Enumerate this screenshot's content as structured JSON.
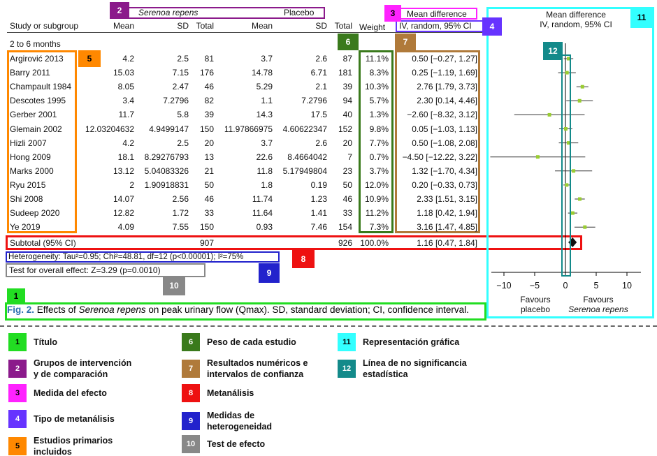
{
  "header": {
    "group_treatment": "Serenoa repens",
    "group_control": "Placebo",
    "effect_measure": "Mean difference",
    "method": "IV, random, 95% CI",
    "plot_title": "Mean difference",
    "plot_method": "IV, random, 95% CI",
    "col_study": "Study or subgroup",
    "col_mean": "Mean",
    "col_sd": "SD",
    "col_total": "Total",
    "col_weight": "Weight",
    "subgroup": "2 to 6 months"
  },
  "studies": [
    {
      "name": "Argirović 2013",
      "m1": "4.2",
      "sd1": "2.5",
      "n1": "81",
      "m2": "3.7",
      "sd2": "2.6",
      "n2": "87",
      "weight": "11.1%",
      "ci": "0.50 [−0.27, 1.27]"
    },
    {
      "name": "Barry 2011",
      "m1": "15.03",
      "sd1": "7.15",
      "n1": "176",
      "m2": "14.78",
      "sd2": "6.71",
      "n2": "181",
      "weight": "8.3%",
      "ci": "0.25 [−1.19, 1.69]"
    },
    {
      "name": "Champault 1984",
      "m1": "8.05",
      "sd1": "2.47",
      "n1": "46",
      "m2": "5.29",
      "sd2": "2.1",
      "n2": "39",
      "weight": "10.3%",
      "ci": "2.76 [1.79, 3.73]"
    },
    {
      "name": "Descotes 1995",
      "m1": "3.4",
      "sd1": "7.2796",
      "n1": "82",
      "m2": "1.1",
      "sd2": "7.2796",
      "n2": "94",
      "weight": "5.7%",
      "ci": "2.30 [0.14, 4.46]"
    },
    {
      "name": "Gerber 2001",
      "m1": "11.7",
      "sd1": "5.8",
      "n1": "39",
      "m2": "14.3",
      "sd2": "17.5",
      "n2": "40",
      "weight": "1.3%",
      "ci": "−2.60 [−8.32, 3.12]"
    },
    {
      "name": "Glemain 2002",
      "m1": "12.03204632",
      "sd1": "4.9499147",
      "n1": "150",
      "m2": "11.97866975",
      "sd2": "4.60622347",
      "n2": "152",
      "weight": "9.8%",
      "ci": "0.05 [−1.03, 1.13]"
    },
    {
      "name": "Hizli 2007",
      "m1": "4.2",
      "sd1": "2.5",
      "n1": "20",
      "m2": "3.7",
      "sd2": "2.6",
      "n2": "20",
      "weight": "7.7%",
      "ci": "0.50 [−1.08, 2.08]"
    },
    {
      "name": "Hong 2009",
      "m1": "18.1",
      "sd1": "8.29276793",
      "n1": "13",
      "m2": "22.6",
      "sd2": "8.4664042",
      "n2": "7",
      "weight": "0.7%",
      "ci": "−4.50 [−12.22, 3.22]"
    },
    {
      "name": "Marks 2000",
      "m1": "13.12",
      "sd1": "5.04083326",
      "n1": "21",
      "m2": "11.8",
      "sd2": "5.17949804",
      "n2": "23",
      "weight": "3.7%",
      "ci": "1.32 [−1.70, 4.34]"
    },
    {
      "name": "Ryu 2015",
      "m1": "2",
      "sd1": "1.90918831",
      "n1": "50",
      "m2": "1.8",
      "sd2": "0.19",
      "n2": "50",
      "weight": "12.0%",
      "ci": "0.20 [−0.33, 0.73]"
    },
    {
      "name": "Shi 2008",
      "m1": "14.07",
      "sd1": "2.56",
      "n1": "46",
      "m2": "11.74",
      "sd2": "1.23",
      "n2": "46",
      "weight": "10.9%",
      "ci": "2.33 [1.51, 3.15]"
    },
    {
      "name": "Sudeep 2020",
      "m1": "12.82",
      "sd1": "1.72",
      "n1": "33",
      "m2": "11.64",
      "sd2": "1.41",
      "n2": "33",
      "weight": "11.2%",
      "ci": "1.18 [0.42, 1.94]"
    },
    {
      "name": "Ye 2019",
      "m1": "4.09",
      "sd1": "7.55",
      "n1": "150",
      "m2": "0.93",
      "sd2": "7.46",
      "n2": "154",
      "weight": "7.3%",
      "ci": "3.16 [1.47, 4.85]"
    }
  ],
  "subtotal": {
    "label": "Subtotal (95% CI)",
    "n1": "907",
    "n2": "926",
    "weight": "100.0%",
    "ci": "1.16 [0.47, 1.84]"
  },
  "heterogeneity": "Heterogeneity: Tau²=0.95; Chi²=48.81, df=12 (p<0.00001); I²=75%",
  "overall_effect": "Test for overall effect: Z=3.29 (p=0.0010)",
  "plot": {
    "axis_ticks": [
      "−10",
      "−5",
      "0",
      "5",
      "10"
    ],
    "favours_left_1": "Favours",
    "favours_left_2": "placebo",
    "favours_right_1": "Favours",
    "favours_right_2": "Serenoa repens"
  },
  "chart_data": {
    "type": "scatter",
    "xlim": [
      -13,
      11
    ],
    "x_ticks": [
      -10,
      -5,
      0,
      5,
      10
    ],
    "points": [
      {
        "est": 0.5,
        "lo": -0.27,
        "hi": 1.27
      },
      {
        "est": 0.25,
        "lo": -1.19,
        "hi": 1.69
      },
      {
        "est": 2.76,
        "lo": 1.79,
        "hi": 3.73
      },
      {
        "est": 2.3,
        "lo": 0.14,
        "hi": 4.46
      },
      {
        "est": -2.6,
        "lo": -8.32,
        "hi": 3.12
      },
      {
        "est": 0.05,
        "lo": -1.03,
        "hi": 1.13
      },
      {
        "est": 0.5,
        "lo": -1.08,
        "hi": 2.08
      },
      {
        "est": -4.5,
        "lo": -12.22,
        "hi": 3.22
      },
      {
        "est": 1.32,
        "lo": -1.7,
        "hi": 4.34
      },
      {
        "est": 0.2,
        "lo": -0.33,
        "hi": 0.73
      },
      {
        "est": 2.33,
        "lo": 1.51,
        "hi": 3.15
      },
      {
        "est": 1.18,
        "lo": 0.42,
        "hi": 1.94
      },
      {
        "est": 3.16,
        "lo": 1.47,
        "hi": 4.85
      }
    ],
    "pooled": {
      "est": 1.16,
      "lo": 0.47,
      "hi": 1.84
    }
  },
  "caption": {
    "fig": "Fig. 2.",
    "pre": " Effects of ",
    "italic": "Serenoa repens",
    "post": " on peak urinary flow (Qmax). SD, standard deviation; CI, confidence interval."
  },
  "badges": [
    "1",
    "2",
    "3",
    "4",
    "5",
    "6",
    "7",
    "8",
    "9",
    "10",
    "11",
    "12"
  ],
  "legend": [
    {
      "num": "1",
      "label": "Título",
      "color": "#22dd22"
    },
    {
      "num": "2",
      "label": "Grupos de intervención y de comparación",
      "color": "#8b1a8b"
    },
    {
      "num": "3",
      "label": "Medida del efecto",
      "color": "#ff22ff"
    },
    {
      "num": "4",
      "label": "Tipo de metanálisis",
      "color": "#6633ff"
    },
    {
      "num": "5",
      "label": "Estudios primarios incluidos",
      "color": "#ff8800"
    },
    {
      "num": "6",
      "label": "Peso de cada estudio",
      "color": "#3a7a1c"
    },
    {
      "num": "7",
      "label": "Resultados numéricos e intervalos de confianza",
      "color": "#b07a3a"
    },
    {
      "num": "8",
      "label": "Metanálisis",
      "color": "#ee1111"
    },
    {
      "num": "9",
      "label": "Medidas de heterogeneidad",
      "color": "#2222cc"
    },
    {
      "num": "10",
      "label": "Test de efecto",
      "color": "#888888"
    },
    {
      "num": "11",
      "label": "Representación gráfica",
      "color": "#33ffff"
    },
    {
      "num": "12",
      "label": "Línea de no significancia estadística",
      "color": "#138a8a"
    }
  ]
}
